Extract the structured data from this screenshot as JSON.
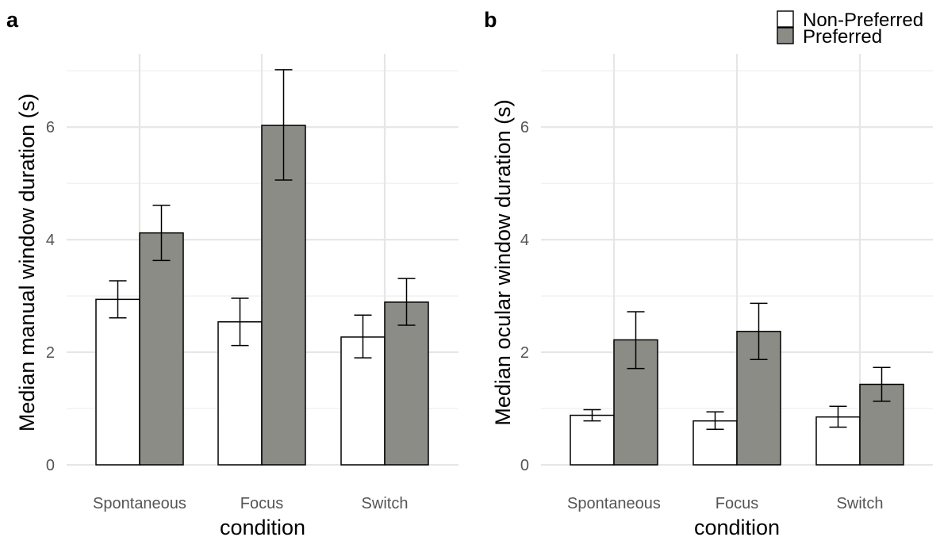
{
  "legend": {
    "items": [
      {
        "label": "Non-Preferred",
        "color": "#ffffff"
      },
      {
        "label": "Preferred",
        "color": "#8c8c86"
      }
    ]
  },
  "chart_data": [
    {
      "type": "bar",
      "panel_label": "a",
      "title": "",
      "xlabel": "condition",
      "ylabel": "Median manual window duration (s)",
      "categories": [
        "Spontaneous",
        "Focus",
        "Switch"
      ],
      "ylim": [
        0,
        7.3
      ],
      "yticks": [
        0,
        2,
        4,
        6
      ],
      "grid": true,
      "series": [
        {
          "name": "Non-Preferred",
          "color": "#ffffff",
          "values": [
            2.94,
            2.54,
            2.27
          ],
          "err_low": [
            2.61,
            2.12,
            1.9
          ],
          "err_high": [
            3.27,
            2.96,
            2.66
          ]
        },
        {
          "name": "Preferred",
          "color": "#8c8c86",
          "values": [
            4.12,
            6.03,
            2.89
          ],
          "err_low": [
            3.63,
            5.06,
            2.48
          ],
          "err_high": [
            4.61,
            7.02,
            3.31
          ]
        }
      ]
    },
    {
      "type": "bar",
      "panel_label": "b",
      "title": "",
      "xlabel": "condition",
      "ylabel": "Median ocular window duration (s)",
      "categories": [
        "Spontaneous",
        "Focus",
        "Switch"
      ],
      "ylim": [
        0,
        7.3
      ],
      "yticks": [
        0,
        2,
        4,
        6
      ],
      "grid": true,
      "legend_position": "top-right",
      "series": [
        {
          "name": "Non-Preferred",
          "color": "#ffffff",
          "values": [
            0.88,
            0.78,
            0.85
          ],
          "err_low": [
            0.78,
            0.63,
            0.67
          ],
          "err_high": [
            0.98,
            0.94,
            1.04
          ]
        },
        {
          "name": "Preferred",
          "color": "#8c8c86",
          "values": [
            2.22,
            2.37,
            1.43
          ],
          "err_low": [
            1.71,
            1.87,
            1.13
          ],
          "err_high": [
            2.72,
            2.87,
            1.73
          ]
        }
      ]
    }
  ]
}
